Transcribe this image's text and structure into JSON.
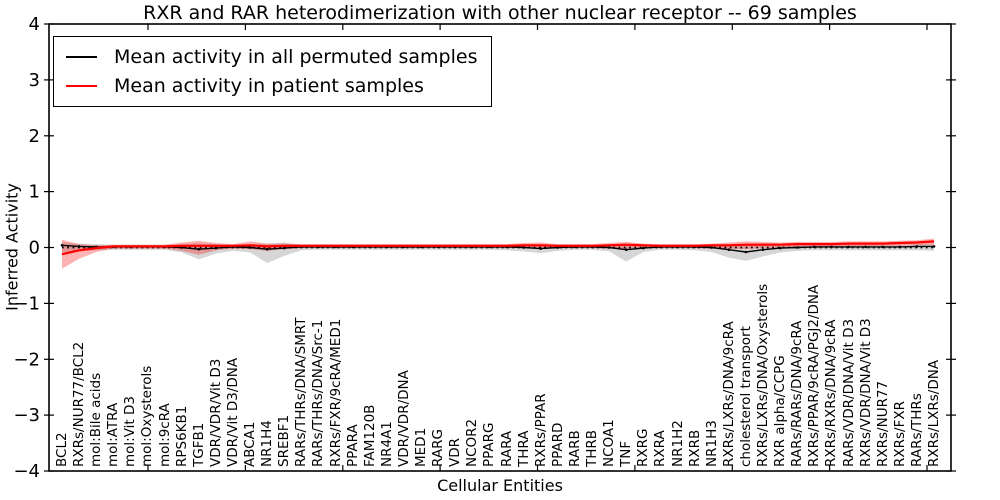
{
  "figure": {
    "title": "RXR and RAR heterodimerization with other nuclear receptor -- 69 samples",
    "xlabel": "Cellular Entities",
    "ylabel": "Inferred Activity"
  },
  "legend": {
    "position": "upper left",
    "items": [
      {
        "label": "Mean activity in all permuted samples",
        "color": "#000000"
      },
      {
        "label": "Mean activity in patient samples",
        "color": "#ff0000"
      }
    ]
  },
  "axes": {
    "ylim": [
      -4,
      4
    ],
    "y_tick_labels": [
      "4",
      "3",
      "2",
      "1",
      "0",
      "−1",
      "−2",
      "−3",
      "−4"
    ],
    "frame_color": "#000000"
  },
  "chart_data": {
    "type": "line",
    "title": "RXR and RAR heterodimerization with other nuclear receptor -- 69 samples",
    "xlabel": "Cellular Entities",
    "ylabel": "Inferred Activity",
    "ylim": [
      -4,
      4
    ],
    "yticks": [
      4,
      3,
      2,
      1,
      0,
      -1,
      -2,
      -3,
      -4
    ],
    "grid": false,
    "legend_position": "upper left",
    "categories": [
      "BCL2",
      "RXRs/NUR77/BCL2",
      "mol:Bile acids",
      "mol:ATRA",
      "mol:Vit D3",
      "mol:Oxysterols",
      "mol:9cRA",
      "RPS6KB1",
      "TGFB1",
      "VDR/VDR/Vit D3",
      "VDR/Vit D3/DNA",
      "ABCA1",
      "NR1H4",
      "SREBF1",
      "RARs/THRs/DNA/SMRT",
      "RARs/THRs/DNA/Src-1",
      "RXRs/FXR/9cRA/MED1",
      "PPARA",
      "FAM120B",
      "NR4A1",
      "VDR/VDR/DNA",
      "MED1",
      "RARG",
      "VDR",
      "NCOR2",
      "PPARG",
      "RARA",
      "THRA",
      "RXRs/PPAR",
      "PPARD",
      "RARB",
      "THRB",
      "NCOA1",
      "TNF",
      "RXRG",
      "RXRA",
      "NR1H2",
      "RXRB",
      "NR1H3",
      "RXRs/LXRs/DNA/9cRA",
      "cholesterol transport",
      "RXRs/LXRs/DNA/Oxysterols",
      "RXR alpha/CCPG",
      "RARs/RARs/DNA/9cRA",
      "RXRs/PPAR/9cRA/PGJ2/DNA",
      "RXRs/RXRs/DNA/9cRA",
      "RARs/VDR/DNA/Vit D3",
      "RXRs/VDR/DNA/Vit D3",
      "RXRs/NUR77",
      "RXRs/FXR",
      "RARs/THRs",
      "RXRs/LXRs/DNA"
    ],
    "series": [
      {
        "name": "Mean activity in all permuted samples",
        "color": "#000000",
        "marker": "dot",
        "values": [
          0.04,
          0.02,
          0.01,
          0.01,
          0.01,
          0.01,
          0.01,
          0.0,
          -0.03,
          -0.01,
          0.01,
          0.0,
          -0.03,
          -0.01,
          0.01,
          0.01,
          0.01,
          0.01,
          0.01,
          0.01,
          0.01,
          0.01,
          0.01,
          0.01,
          0.01,
          0.01,
          0.01,
          0.0,
          -0.02,
          0.0,
          0.01,
          0.01,
          0.0,
          -0.04,
          -0.01,
          0.01,
          0.01,
          0.01,
          0.0,
          -0.04,
          -0.08,
          -0.04,
          -0.01,
          0.0,
          0.01,
          0.01,
          0.01,
          0.01,
          0.01,
          0.01,
          0.02,
          0.02
        ],
        "band": {
          "color": "rgba(0,0,0,0.16)",
          "low": [
            -0.08,
            -0.06,
            -0.05,
            -0.04,
            -0.04,
            -0.04,
            -0.04,
            -0.09,
            -0.21,
            -0.11,
            -0.06,
            -0.09,
            -0.28,
            -0.15,
            -0.05,
            -0.04,
            -0.04,
            -0.04,
            -0.04,
            -0.04,
            -0.04,
            -0.04,
            -0.04,
            -0.04,
            -0.04,
            -0.04,
            -0.05,
            -0.07,
            -0.1,
            -0.06,
            -0.04,
            -0.04,
            -0.07,
            -0.25,
            -0.08,
            -0.04,
            -0.04,
            -0.05,
            -0.08,
            -0.18,
            -0.24,
            -0.16,
            -0.09,
            -0.06,
            -0.05,
            -0.05,
            -0.05,
            -0.05,
            -0.05,
            -0.05,
            -0.05,
            -0.06
          ],
          "high": [
            0.09,
            0.07,
            0.06,
            0.05,
            0.05,
            0.05,
            0.05,
            0.06,
            0.08,
            0.06,
            0.05,
            0.06,
            0.07,
            0.09,
            0.05,
            0.05,
            0.05,
            0.05,
            0.05,
            0.05,
            0.05,
            0.05,
            0.05,
            0.05,
            0.05,
            0.05,
            0.05,
            0.05,
            0.06,
            0.05,
            0.05,
            0.05,
            0.05,
            0.06,
            0.05,
            0.05,
            0.05,
            0.05,
            0.05,
            0.06,
            0.07,
            0.07,
            0.06,
            0.06,
            0.05,
            0.05,
            0.05,
            0.05,
            0.05,
            0.05,
            0.06,
            0.07
          ]
        }
      },
      {
        "name": "Mean activity in patient samples",
        "color": "#ff0000",
        "marker": "none",
        "values": [
          -0.12,
          -0.05,
          -0.01,
          0.02,
          0.02,
          0.02,
          0.02,
          0.03,
          0.03,
          0.03,
          0.03,
          0.04,
          0.02,
          0.03,
          0.03,
          0.03,
          0.03,
          0.03,
          0.03,
          0.03,
          0.03,
          0.03,
          0.03,
          0.03,
          0.03,
          0.03,
          0.03,
          0.04,
          0.04,
          0.03,
          0.03,
          0.03,
          0.04,
          0.05,
          0.04,
          0.03,
          0.03,
          0.03,
          0.04,
          0.04,
          0.05,
          0.05,
          0.05,
          0.06,
          0.06,
          0.06,
          0.07,
          0.07,
          0.07,
          0.08,
          0.09,
          0.11
        ],
        "band": {
          "color": "rgba(255,0,0,0.30)",
          "low": [
            -0.38,
            -0.2,
            -0.08,
            -0.02,
            -0.02,
            -0.02,
            -0.02,
            -0.06,
            -0.13,
            -0.05,
            -0.02,
            -0.03,
            -0.06,
            -0.03,
            -0.01,
            -0.01,
            -0.01,
            -0.01,
            -0.01,
            -0.01,
            -0.01,
            -0.01,
            -0.01,
            -0.01,
            -0.01,
            -0.01,
            -0.01,
            -0.01,
            -0.02,
            -0.01,
            -0.01,
            -0.01,
            -0.02,
            -0.03,
            -0.01,
            -0.01,
            -0.01,
            -0.01,
            -0.02,
            -0.02,
            -0.03,
            -0.01,
            0.0,
            0.01,
            0.01,
            0.02,
            0.02,
            0.02,
            0.03,
            0.03,
            0.04,
            0.05
          ],
          "high": [
            0.14,
            0.06,
            0.04,
            0.05,
            0.05,
            0.05,
            0.05,
            0.09,
            0.12,
            0.08,
            0.06,
            0.11,
            0.07,
            0.07,
            0.06,
            0.06,
            0.06,
            0.06,
            0.06,
            0.06,
            0.06,
            0.06,
            0.06,
            0.06,
            0.06,
            0.06,
            0.06,
            0.08,
            0.09,
            0.06,
            0.06,
            0.06,
            0.08,
            0.1,
            0.07,
            0.06,
            0.06,
            0.06,
            0.07,
            0.09,
            0.11,
            0.1,
            0.09,
            0.1,
            0.1,
            0.1,
            0.11,
            0.11,
            0.11,
            0.12,
            0.13,
            0.16
          ]
        }
      }
    ],
    "reference_line": {
      "y": 0,
      "style": "dotted",
      "color": "#000000"
    }
  }
}
